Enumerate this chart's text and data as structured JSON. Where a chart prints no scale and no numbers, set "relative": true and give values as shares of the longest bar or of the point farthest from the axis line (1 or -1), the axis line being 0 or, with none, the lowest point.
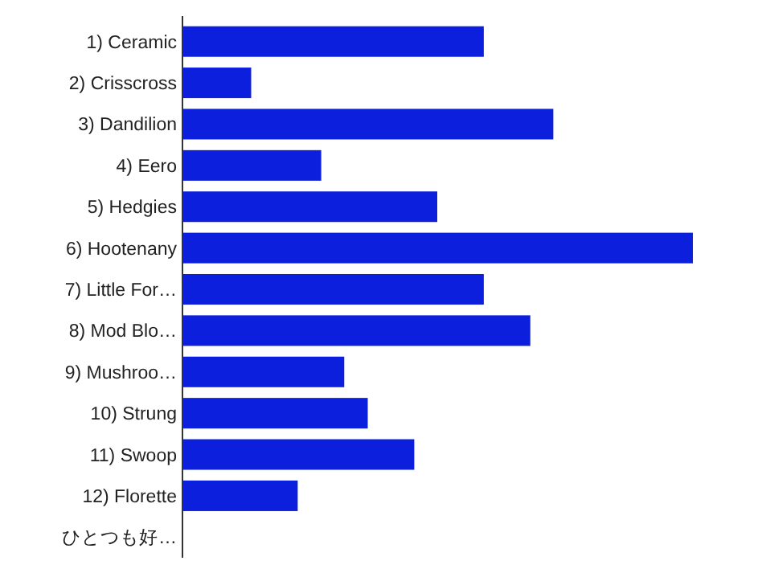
{
  "chart_data": {
    "type": "bar",
    "orientation": "horizontal",
    "relative": true,
    "color": "#0b1fdc",
    "categories": [
      "1) Ceramic",
      "2) Crisscross",
      "3) Dandilion",
      "4) Eero",
      "5) Hedgies",
      "6) Hootenany",
      "7) Little For…",
      "8) Mod Blo…",
      "9) Mushroo…",
      "10) Strung",
      "11) Swoop",
      "12) Florette",
      "ひとつも好…"
    ],
    "values": [
      0.591,
      0.136,
      0.727,
      0.273,
      0.5,
      1,
      0.591,
      0.682,
      0.318,
      0.364,
      0.455,
      0.227,
      0
    ]
  }
}
